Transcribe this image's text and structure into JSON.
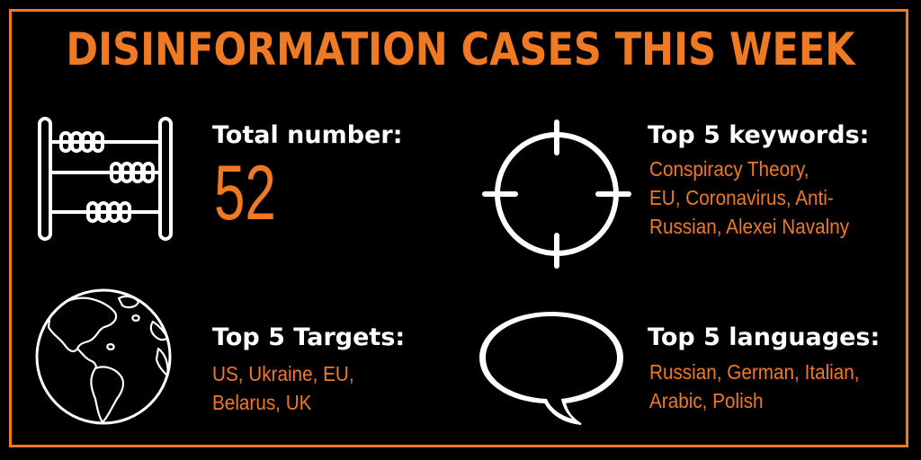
{
  "title": "DISINFORMATION CASES THIS WEEK",
  "colors": {
    "accent": "#f07a23",
    "text": "#ffffff",
    "background": "#000000"
  },
  "total": {
    "icon": "abacus-icon",
    "label": "Total number:",
    "value": "52"
  },
  "keywords": {
    "icon": "crosshair-icon",
    "label": "Top 5 keywords:",
    "lines": [
      "Conspiracy Theory,",
      "EU, Coronavirus, Anti-",
      "Russian, Alexei Navalny"
    ]
  },
  "targets": {
    "icon": "globe-icon",
    "label": "Top 5 Targets:",
    "lines": [
      "US, Ukraine, EU,",
      "Belarus, UK"
    ]
  },
  "languages": {
    "icon": "speech-bubble-icon",
    "label": "Top 5 languages:",
    "lines": [
      "Russian, German, Italian,",
      "Arabic, Polish"
    ]
  }
}
